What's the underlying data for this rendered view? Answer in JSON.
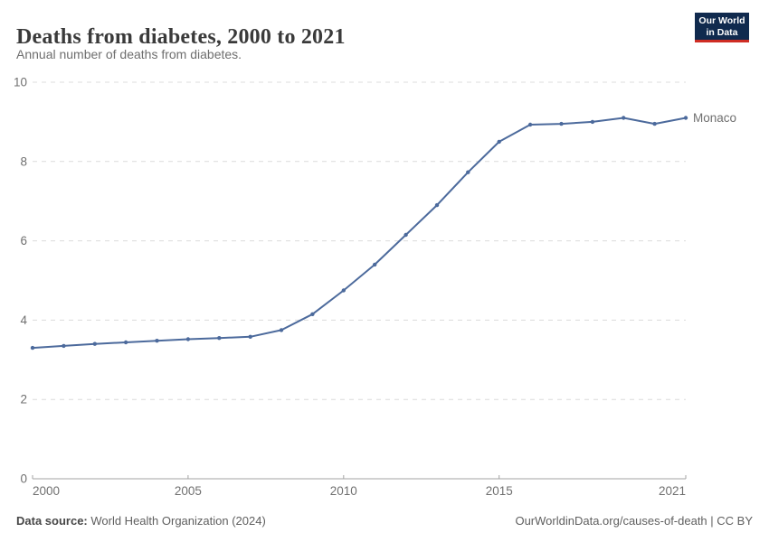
{
  "header": {
    "title": "Deaths from diabetes, 2000 to 2021",
    "subtitle": "Annual number of deaths from diabetes.",
    "logo": {
      "line1": "Our World",
      "line2": "in Data",
      "bg_color": "#102a4e",
      "bar_color": "#cf2d24"
    }
  },
  "chart_data": {
    "type": "line",
    "title": "Deaths from diabetes, 2000 to 2021",
    "x": [
      2000,
      2001,
      2002,
      2003,
      2004,
      2005,
      2006,
      2007,
      2008,
      2009,
      2010,
      2011,
      2012,
      2013,
      2014,
      2015,
      2016,
      2017,
      2018,
      2019,
      2020,
      2021
    ],
    "series": [
      {
        "name": "Monaco",
        "color": "#4c6a9c",
        "values": [
          3.3,
          3.35,
          3.4,
          3.44,
          3.48,
          3.52,
          3.55,
          3.58,
          3.75,
          4.15,
          4.75,
          5.4,
          6.15,
          6.9,
          7.73,
          8.5,
          8.93,
          8.95,
          9.0,
          9.1,
          8.95,
          9.1
        ]
      }
    ],
    "xlabel": "",
    "ylabel": "",
    "ylim": [
      0,
      10
    ],
    "yticks": [
      0,
      2,
      4,
      6,
      8,
      10
    ],
    "xticks": [
      2000,
      2005,
      2010,
      2015,
      2021
    ],
    "grid": "horizontal-dashed",
    "grid_color": "#dcdcdc",
    "axis_color": "#a3a3a3",
    "tick_label_color": "#707070",
    "legend": "end-of-line-label"
  },
  "footer": {
    "source_label": "Data source:",
    "source_value": " World Health Organization (2024)",
    "credit": "OurWorldinData.org/causes-of-death | CC BY"
  }
}
